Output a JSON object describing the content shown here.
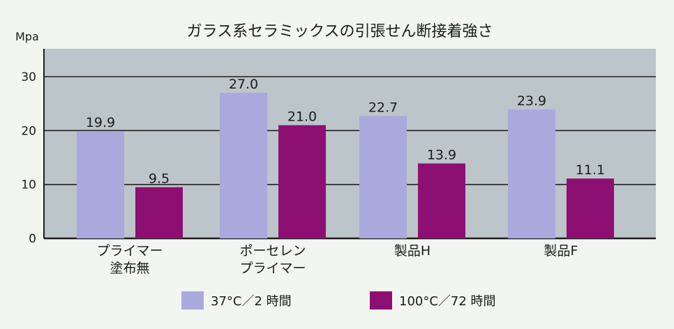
{
  "chart_data": {
    "type": "bar",
    "title": "ガラス系セラミックスの引張せん断接着強さ",
    "ylabel": "Mpa",
    "ylim": [
      0,
      30
    ],
    "yticks": [
      0,
      10,
      20,
      30
    ],
    "grid": true,
    "legend_position": "bottom",
    "categories": [
      [
        "プライマー",
        "塗布無"
      ],
      [
        "ポーセレン",
        "プライマー"
      ],
      [
        "製品H"
      ],
      [
        "製品F"
      ]
    ],
    "series": [
      {
        "name": "37°C／2 時間",
        "color": "#a9a9de",
        "values": [
          19.9,
          27.0,
          22.7,
          23.9
        ],
        "labels": [
          "19.9",
          "27.0",
          "22.7",
          "23.9"
        ]
      },
      {
        "name": "100°C／72 時間",
        "color": "#8d0f72",
        "values": [
          9.5,
          21.0,
          13.9,
          11.1
        ],
        "labels": [
          "9.5",
          "21.0",
          "13.9",
          "11.1"
        ]
      }
    ],
    "colors": {
      "plot_background": "#bcc5c9",
      "page_background": "#f2f5f0",
      "gridline": "#1e1e1e"
    }
  }
}
